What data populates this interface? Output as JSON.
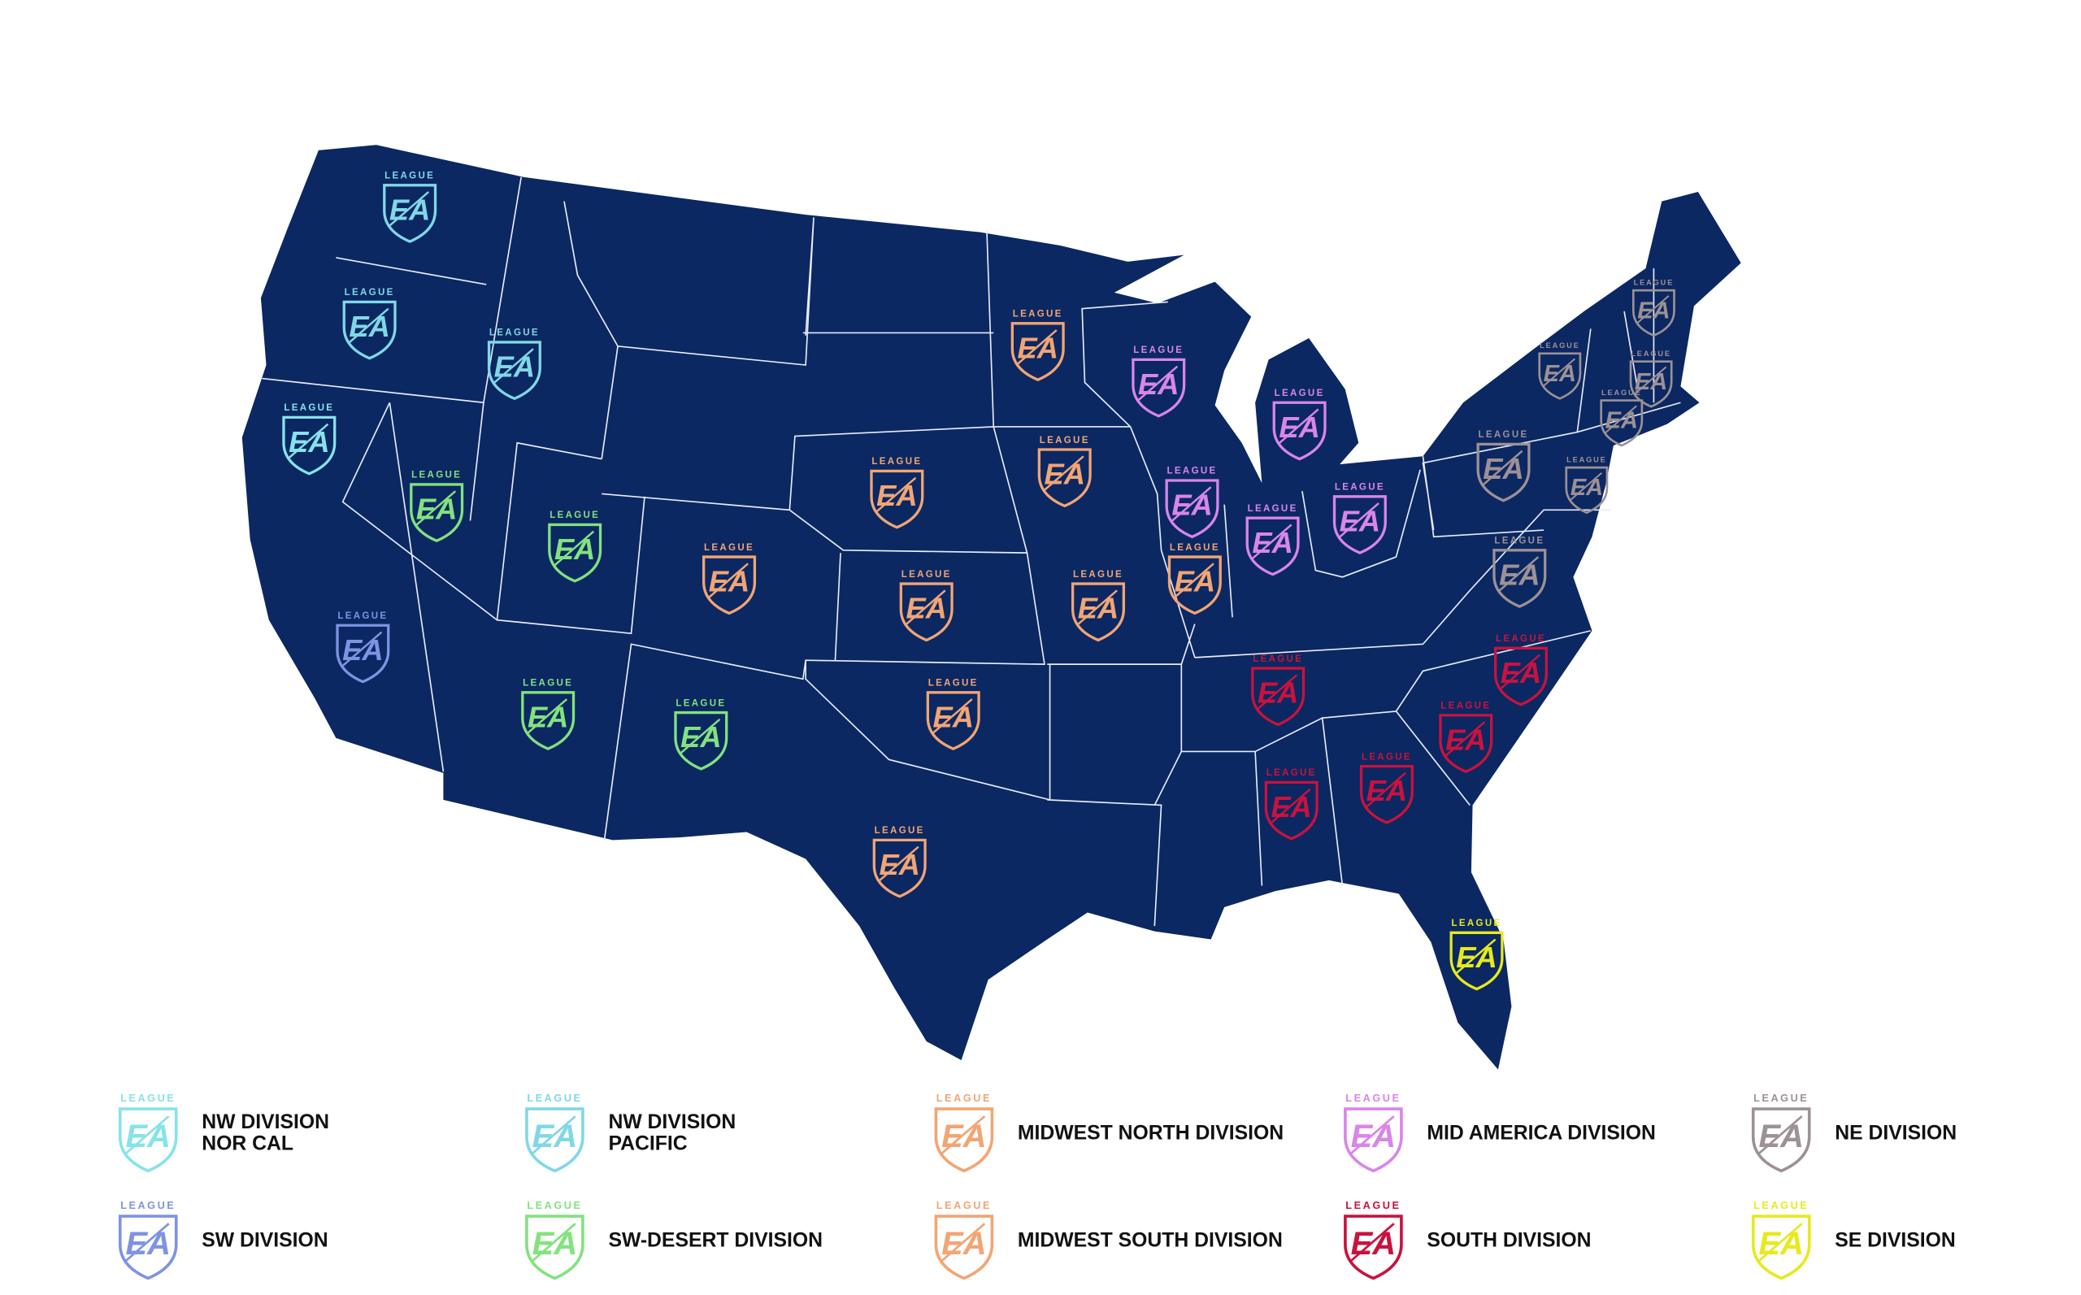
{
  "map": {
    "badge": {
      "top_text": "LEAGUE",
      "logo_text": "EA"
    },
    "land_color": "#0b2862",
    "border_color": "#e8ecf5",
    "divisions": [
      {
        "label": [
          "NW DIVISION",
          "NOR CAL"
        ],
        "color": "#86e3ea"
      },
      {
        "label": [
          "NW DIVISION",
          "PACIFIC"
        ],
        "color": "#80d8e6"
      },
      {
        "label": [
          "MIDWEST NORTH DIVISION"
        ],
        "color": "#f2a574"
      },
      {
        "label": [
          "MID AMERICA DIVISION"
        ],
        "color": "#d985ea"
      },
      {
        "label": [
          "NE DIVISION"
        ],
        "color": "#9d9195"
      },
      {
        "label": [
          "SW DIVISION"
        ],
        "color": "#7f93e3"
      },
      {
        "label": [
          "SW-DESERT DIVISION"
        ],
        "color": "#83e27e"
      },
      {
        "label": [
          "MIDWEST SOUTH DIVISION"
        ],
        "color": "#f2a574"
      },
      {
        "label": [
          "SOUTH DIVISION"
        ],
        "color": "#c9123e"
      },
      {
        "label": [
          "SE DIVISION"
        ],
        "color": "#e6ea1e"
      }
    ]
  }
}
